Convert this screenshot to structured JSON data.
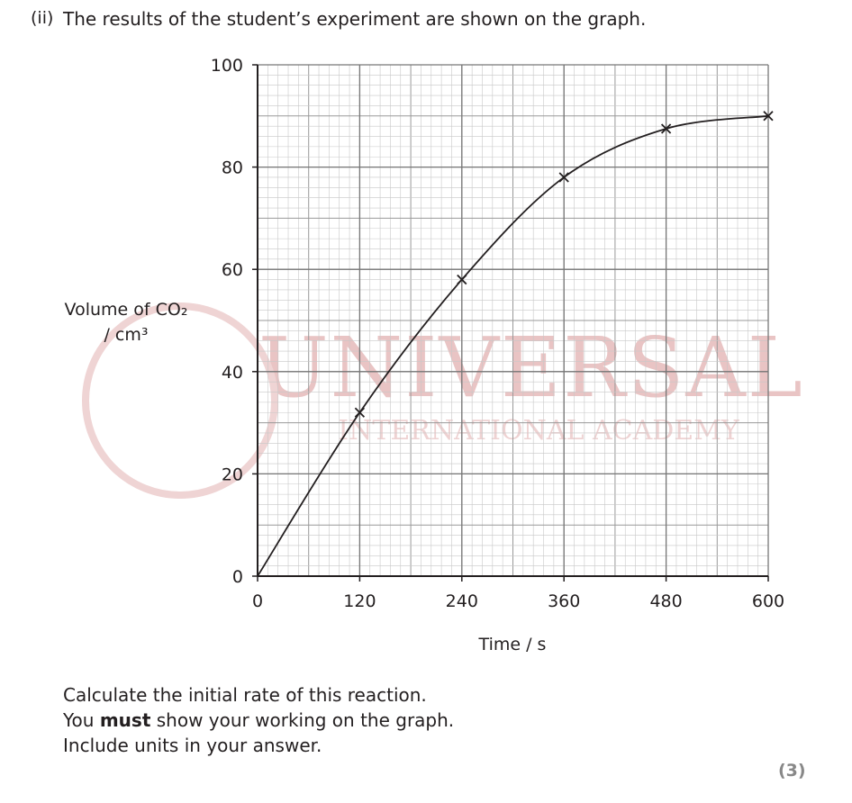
{
  "question": {
    "number": "(ii)",
    "text": "The results of the student’s experiment are shown on the graph."
  },
  "chart_data": {
    "type": "line",
    "xlabel": "Time / s",
    "ylabel": [
      "Volume of CO₂",
      "/ cm³"
    ],
    "x": [
      120,
      240,
      360,
      480,
      600
    ],
    "values": [
      32,
      58,
      78,
      87.5,
      90
    ],
    "curve": {
      "x": [
        0,
        120,
        240,
        360,
        480,
        600
      ],
      "values": [
        0,
        32,
        58,
        78,
        87.5,
        90
      ]
    },
    "color": "#231f20",
    "xlim": [
      0,
      600
    ],
    "xticks": [
      0,
      120,
      240,
      360,
      480,
      600
    ],
    "ylim": [
      0,
      100
    ],
    "yticks": [
      0,
      20,
      40,
      60,
      80,
      100
    ],
    "grid": true
  },
  "watermark": [
    "UNIVERSAL",
    "INTERNATIONAL ACADEMY"
  ],
  "instructions": {
    "line1": "Calculate the initial rate of this reaction.",
    "line2_start": "You",
    "line2_bold": "must",
    "line2_end": "show your working on the graph.",
    "line3": "Include units in your answer."
  },
  "marks": "(3)"
}
